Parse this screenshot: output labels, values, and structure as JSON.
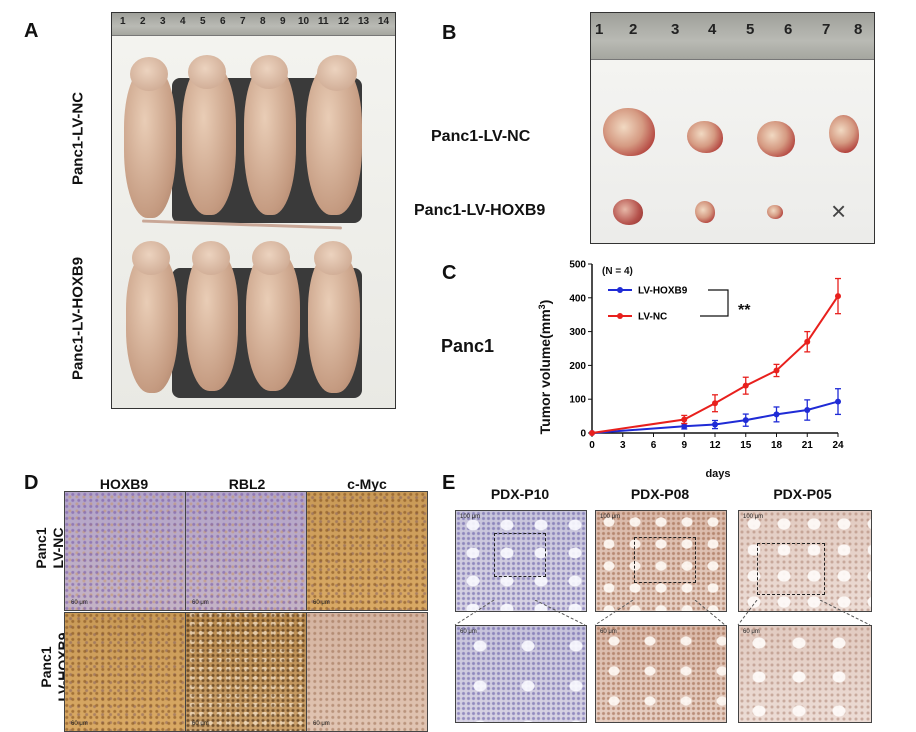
{
  "panels": {
    "a": {
      "letter": "A",
      "row_top": "Panc1-LV-NC",
      "row_bottom": "Panc1-LV-HOXB9",
      "ruler_ticks": [
        "1",
        "2",
        "3",
        "4",
        "5",
        "6",
        "7",
        "8",
        "9",
        "10",
        "11",
        "12",
        "13",
        "14"
      ]
    },
    "b": {
      "letter": "B",
      "row_top": "Panc1-LV-NC",
      "row_bottom": "Panc1-LV-HOXB9",
      "ruler_ticks": [
        "1",
        "2",
        "3",
        "4",
        "5",
        "6",
        "7",
        "8"
      ],
      "missing_mark": "×"
    },
    "c": {
      "letter": "C",
      "side_label": "Panc1"
    },
    "d": {
      "letter": "D",
      "columns": [
        "HOXB9",
        "RBL2",
        "c-Myc"
      ],
      "rows": [
        {
          "line1": "Panc1",
          "line2": "LV-NC"
        },
        {
          "line1": "Panc1",
          "line2": "LV-HOXB9"
        }
      ],
      "scale_label": "60 μm"
    },
    "e": {
      "letter": "E",
      "columns": [
        "PDX-P10",
        "PDX-P08",
        "PDX-P05"
      ],
      "scale_top": "100 μm",
      "scale_bottom": "60 μm"
    }
  },
  "chart_data": {
    "type": "line",
    "title": "",
    "annotation_n": "(N = 4)",
    "significance": "**",
    "xlabel": "days",
    "ylabel": "Tumor  volume(mm",
    "ylabel_sup": "3",
    "ylabel_end": ")",
    "x": [
      0,
      9,
      12,
      15,
      18,
      21,
      24
    ],
    "xticks": [
      0,
      3,
      6,
      9,
      12,
      15,
      18,
      21,
      24
    ],
    "yticks": [
      0,
      100,
      200,
      300,
      400,
      500
    ],
    "xlim": [
      0,
      24
    ],
    "ylim": [
      0,
      500
    ],
    "legend_position": "top-left",
    "series": [
      {
        "name": "LV-HOXB9",
        "color": "#1f2bd6",
        "values": [
          0,
          20,
          25,
          38,
          55,
          68,
          93
        ],
        "errors": [
          0,
          8,
          12,
          18,
          22,
          30,
          38
        ]
      },
      {
        "name": "LV-NC",
        "color": "#e8201d",
        "values": [
          0,
          40,
          88,
          140,
          185,
          270,
          405
        ],
        "errors": [
          0,
          12,
          25,
          25,
          18,
          30,
          52
        ]
      }
    ]
  }
}
